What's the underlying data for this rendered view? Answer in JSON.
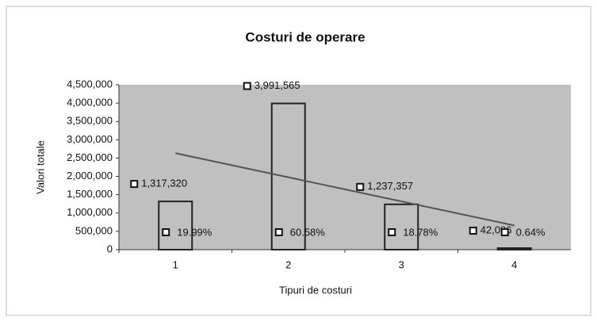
{
  "chart_data": {
    "type": "bar",
    "title": "Costuri de operare",
    "x_label": "Tipuri de costuri",
    "y_label": "Valori totale",
    "categories": [
      "1",
      "2",
      "3",
      "4"
    ],
    "values": [
      1317320,
      3991565,
      1237357,
      42096
    ],
    "value_labels": [
      "1,317,320",
      "3,991,565",
      "1,237,357",
      "42,096"
    ],
    "percent_labels": [
      "19.99%",
      "60.58%",
      "18.78%",
      "0.64%"
    ],
    "color": "#c0c0c0",
    "trendline": true,
    "ylim": [
      0,
      4500000
    ],
    "yticks": [
      0,
      {
        "value": 500000,
        "label": "500,000"
      },
      {
        "value": 1000000,
        "label": "1,000,000"
      },
      {
        "value": 1500000,
        "label": "1,500,000"
      },
      {
        "value": 2000000,
        "label": "2,000,000"
      },
      {
        "value": 2500000,
        "label": "2,500,000"
      },
      {
        "value": 3000000,
        "label": "3,000,000"
      },
      {
        "value": 3500000,
        "label": "3,500,000"
      },
      {
        "value": 4000000,
        "label": "4,000,000"
      },
      {
        "value": 4500000,
        "label": "4,500,000"
      }
    ]
  }
}
